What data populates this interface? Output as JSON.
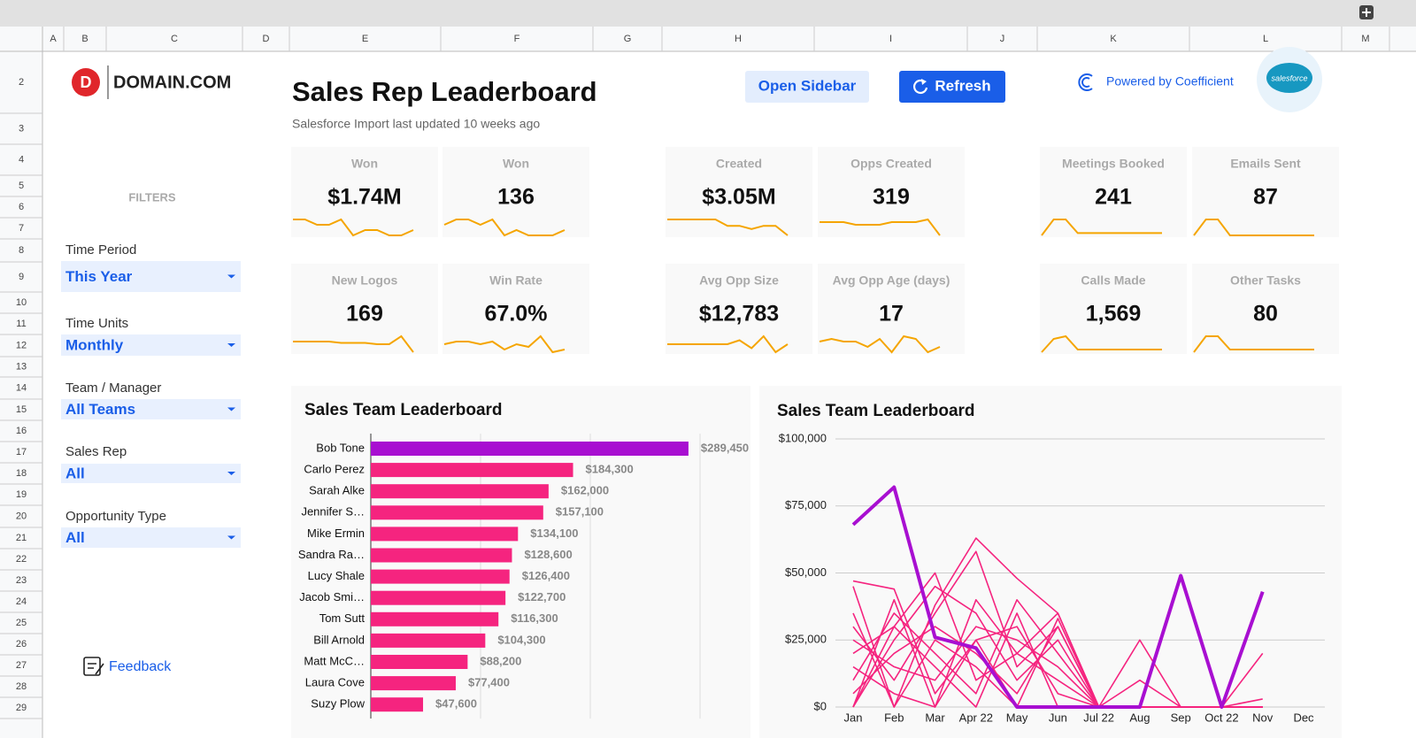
{
  "sheet": {
    "columns": [
      "A",
      "B",
      "C",
      "D",
      "E",
      "F",
      "G",
      "H",
      "I",
      "J",
      "K",
      "L",
      "M"
    ],
    "rows": [
      2,
      3,
      4,
      5,
      6,
      7,
      8,
      9,
      10,
      11,
      12,
      13,
      14,
      15,
      16,
      17,
      18,
      19,
      20,
      21,
      22,
      23,
      24,
      25,
      26,
      27,
      28,
      29
    ]
  },
  "header": {
    "brand": "DOMAIN.COM",
    "title": "Sales Rep Leaderboard",
    "subtitle": "Salesforce Import last updated 10 weeks ago",
    "buttons": [
      "Open Sidebar",
      "Refresh"
    ],
    "powered_by": "Powered by Coefficient",
    "salesforce": "salesforce"
  },
  "filters": {
    "heading": "FILTERS",
    "items": [
      {
        "label": "Time Period",
        "value": "This Year"
      },
      {
        "label": "Time Units",
        "value": "Monthly"
      },
      {
        "label": "Team / Manager",
        "value": "All Teams"
      },
      {
        "label": "Sales Rep",
        "value": "All"
      },
      {
        "label": "Opportunity Type",
        "value": "All"
      }
    ],
    "feedback": "Feedback"
  },
  "kpis": [
    {
      "label": "Won",
      "value": "$1.74M",
      "spark": [
        6,
        6,
        5,
        5,
        6,
        3,
        4,
        4,
        3,
        3,
        4
      ]
    },
    {
      "label": "Won",
      "value": "136",
      "spark": [
        5,
        6,
        6,
        5,
        6,
        3,
        4,
        3,
        3,
        3,
        4
      ]
    },
    {
      "label": "Created",
      "value": "$3.05M",
      "spark": [
        6,
        6,
        6,
        6,
        6,
        4,
        4,
        3,
        4,
        4,
        1
      ]
    },
    {
      "label": "Opps Created",
      "value": "319",
      "spark": [
        6,
        6,
        6,
        5,
        5,
        5,
        6,
        6,
        6,
        7,
        1
      ]
    },
    {
      "label": "Meetings Booked",
      "value": "241",
      "spark": [
        0,
        7,
        7,
        1,
        1,
        1,
        1,
        1,
        1,
        1,
        1
      ]
    },
    {
      "label": "Emails Sent",
      "value": "87",
      "spark": [
        1,
        7,
        7,
        1,
        1,
        1,
        1,
        1,
        1,
        1,
        1
      ]
    },
    {
      "label": "New Logos",
      "value": "169",
      "spark": [
        5,
        5,
        5,
        5,
        4.5,
        4.5,
        4.5,
        4,
        4,
        7,
        1
      ]
    },
    {
      "label": "Win Rate",
      "value": "67.0%",
      "spark": [
        5,
        6,
        6,
        5,
        6,
        3,
        5,
        4,
        8,
        2,
        3
      ]
    },
    {
      "label": "Avg Opp Size",
      "value": "$12,783",
      "spark": [
        4,
        4,
        4,
        4,
        4,
        4,
        5,
        3,
        6,
        2,
        4
      ]
    },
    {
      "label": "Avg Opp Age (days)",
      "value": "17",
      "spark": [
        5,
        6,
        5,
        5,
        3,
        6,
        1,
        7,
        6,
        1,
        3
      ]
    },
    {
      "label": "Calls Made",
      "value": "1,569",
      "spark": [
        0,
        5,
        6,
        1,
        1,
        1,
        1,
        1,
        1,
        1,
        1
      ]
    },
    {
      "label": "Other Tasks",
      "value": "80",
      "spark": [
        0,
        6,
        6,
        1,
        1,
        1,
        1,
        1,
        1,
        1,
        1
      ]
    }
  ],
  "charts": [
    {
      "type": "bar",
      "orientation": "horizontal",
      "title": "Sales Team Leaderboard",
      "categories": [
        "Bob Tone",
        "Carlo Perez",
        "Sarah Alke",
        "Jennifer S…",
        "Mike Ermin",
        "Sandra Ra…",
        "Lucy Shale",
        "Jacob Smi…",
        "Tom Sutt",
        "Bill Arnold",
        "Matt McC…",
        "Laura Cove",
        "Suzy Plow"
      ],
      "values": [
        289450,
        184300,
        162000,
        157100,
        134100,
        128600,
        126400,
        122700,
        116300,
        104300,
        88200,
        77400,
        47600
      ],
      "value_labels": [
        "$289,450",
        "$184,300",
        "$162,000",
        "$157,100",
        "$134,100",
        "$128,600",
        "$126,400",
        "$122,700",
        "$116,300",
        "$104,300",
        "$88,200",
        "$77,400",
        "$47,600"
      ],
      "colors": [
        "#a80fd1",
        "#f5247f",
        "#f5247f",
        "#f5247f",
        "#f5247f",
        "#f5247f",
        "#f5247f",
        "#f5247f",
        "#f5247f",
        "#f5247f",
        "#f5247f",
        "#f5247f",
        "#f5247f"
      ],
      "xlim": [
        0,
        300000
      ],
      "xgrid": [
        100000,
        200000,
        300000
      ]
    },
    {
      "type": "line",
      "title": "Sales Team Leaderboard",
      "categories": [
        "Jan",
        "Feb",
        "Mar",
        "Apr 22",
        "May",
        "Jun",
        "Jul 22",
        "Aug",
        "Sep",
        "Oct 22",
        "Nov",
        "Dec"
      ],
      "ylim": [
        0,
        100000
      ],
      "yticks": [
        {
          "value": 0,
          "label": "$0"
        },
        {
          "value": 25000,
          "label": "$25,000"
        },
        {
          "value": 50000,
          "label": "$50,000"
        },
        {
          "value": 75000,
          "label": "$75,000"
        },
        {
          "value": 100000,
          "label": "$100,000"
        }
      ],
      "grid": true,
      "series": [
        {
          "color": "#f5247f",
          "stroke_width": 1.6,
          "values": [
            47000,
            44000,
            5000,
            25000,
            0,
            0,
            0,
            0,
            0,
            0,
            3000,
            null
          ]
        },
        {
          "color": "#f5247f",
          "stroke_width": 1.6,
          "values": [
            45000,
            0,
            38000,
            63000,
            48000,
            35000,
            0,
            0,
            0,
            0,
            0,
            null
          ]
        },
        {
          "color": "#f5247f",
          "stroke_width": 1.6,
          "values": [
            30000,
            10000,
            35000,
            58000,
            15000,
            30000,
            0,
            0,
            0,
            0,
            0,
            null
          ]
        },
        {
          "color": "#f5247f",
          "stroke_width": 1.6,
          "values": [
            20000,
            30000,
            50000,
            10000,
            20000,
            35000,
            0,
            0,
            0,
            0,
            0,
            null
          ]
        },
        {
          "color": "#f5247f",
          "stroke_width": 1.6,
          "values": [
            10000,
            35000,
            20000,
            5000,
            40000,
            20000,
            0,
            0,
            0,
            0,
            20000,
            null
          ]
        },
        {
          "color": "#f5247f",
          "stroke_width": 1.6,
          "values": [
            0,
            25000,
            45000,
            35000,
            10000,
            25000,
            0,
            0,
            0,
            0,
            0,
            null
          ]
        },
        {
          "color": "#f5247f",
          "stroke_width": 1.6,
          "values": [
            25000,
            15000,
            10000,
            30000,
            25000,
            15000,
            0,
            10000,
            0,
            0,
            0,
            null
          ]
        },
        {
          "color": "#f5247f",
          "stroke_width": 1.6,
          "values": [
            0,
            30000,
            15000,
            0,
            35000,
            0,
            0,
            25000,
            0,
            0,
            0,
            null
          ]
        },
        {
          "color": "#f5247f",
          "stroke_width": 1.6,
          "values": [
            5000,
            20000,
            30000,
            20000,
            5000,
            30000,
            0,
            0,
            0,
            0,
            0,
            null
          ]
        },
        {
          "color": "#f5247f",
          "stroke_width": 1.6,
          "values": [
            15000,
            5000,
            0,
            40000,
            20000,
            10000,
            0,
            0,
            0,
            0,
            0,
            null
          ]
        },
        {
          "color": "#f5247f",
          "stroke_width": 1.6,
          "values": [
            35000,
            0,
            25000,
            15000,
            0,
            33000,
            0,
            0,
            0,
            0,
            0,
            null
          ]
        },
        {
          "color": "#f5247f",
          "stroke_width": 1.6,
          "values": [
            0,
            40000,
            0,
            25000,
            30000,
            5000,
            0,
            0,
            0,
            0,
            0,
            null
          ]
        },
        {
          "color": "#a80fd1",
          "stroke_width": 4,
          "values": [
            68000,
            82000,
            26000,
            22000,
            0,
            0,
            0,
            0,
            49000,
            0,
            43000,
            null
          ]
        }
      ]
    }
  ]
}
